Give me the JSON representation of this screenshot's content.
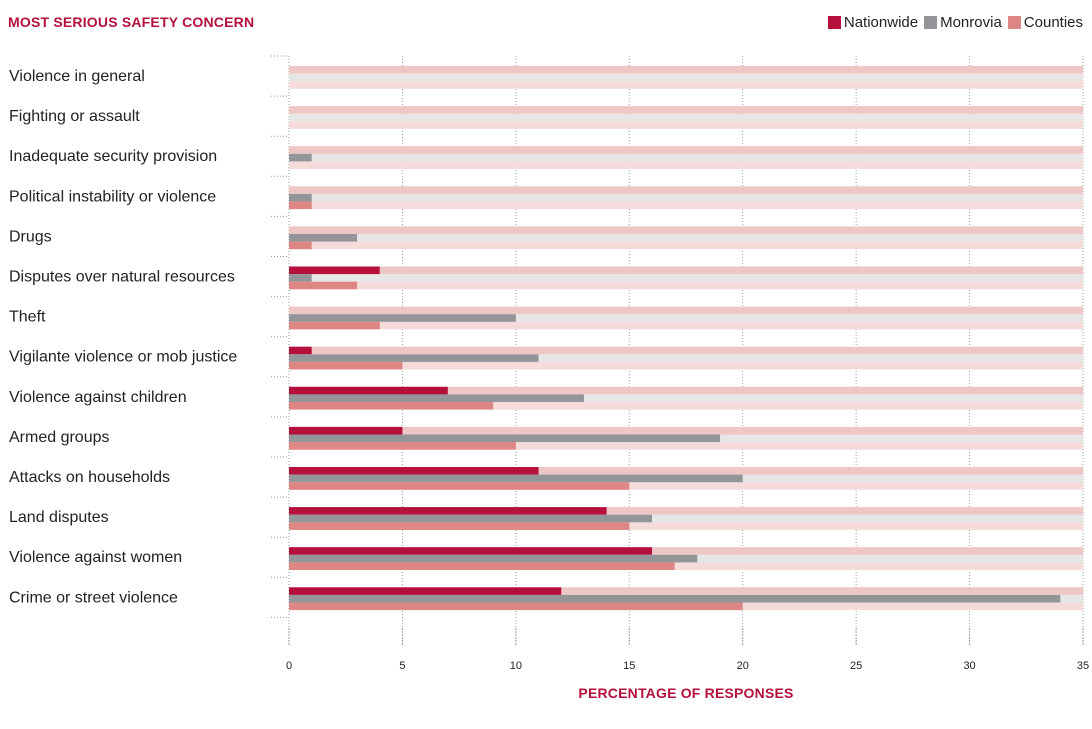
{
  "chart_data": {
    "type": "bar",
    "orientation": "horizontal",
    "title": "MOST SERIOUS SAFETY CONCERN",
    "xlabel": "PERCENTAGE OF RESPONSES",
    "xlim": [
      0,
      35
    ],
    "xticks": [
      0,
      5,
      10,
      15,
      20,
      25,
      30,
      35
    ],
    "legend_position": "top-right",
    "categories": [
      "Violence in general",
      "Fighting or assault",
      "Inadequate security provision",
      "Political instability or violence",
      "Drugs",
      "Disputes over natural resources",
      "Theft",
      "Vigilante violence or mob justice",
      "Violence against children",
      "Armed groups",
      "Attacks on households",
      "Land disputes",
      "Violence against women",
      "Crime or street violence"
    ],
    "series": [
      {
        "name": "Nationwide",
        "color": "#b5103c",
        "values": [
          0,
          0,
          0,
          0,
          0,
          4,
          0,
          1,
          7,
          5,
          11,
          14,
          16,
          12
        ]
      },
      {
        "name": "Monrovia",
        "color": "#939598",
        "values": [
          0,
          0,
          1,
          1,
          3,
          1,
          10,
          11,
          13,
          19,
          20,
          16,
          18,
          34
        ]
      },
      {
        "name": "Counties",
        "color": "#de8684",
        "values": [
          0,
          0,
          0,
          1,
          1,
          3,
          4,
          5,
          9,
          10,
          15,
          15,
          17,
          20
        ]
      }
    ],
    "background_track_colors": [
      "#eec6c4",
      "#e6e6e7",
      "#f5dcda"
    ]
  }
}
